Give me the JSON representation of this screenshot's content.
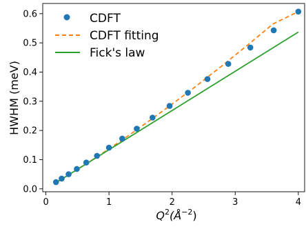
{
  "chart_data": {
    "type": "line",
    "xlabel": "Q²(Å⁻²)",
    "xlabel_parts": {
      "base": "Q",
      "exp": "2",
      "unit_open": "(Å",
      "unit_exp": "−2",
      "unit_close": ")"
    },
    "ylabel": "HWHM (meV)",
    "xlim": [
      -0.05,
      4.1
    ],
    "ylim": [
      -0.01,
      0.635
    ],
    "xticks": [
      0,
      1,
      2,
      3,
      4
    ],
    "yticks": [
      0.0,
      0.1,
      0.2,
      0.3,
      0.4,
      0.5,
      0.6
    ],
    "xtick_labels": [
      "0",
      "1",
      "2",
      "3",
      "4"
    ],
    "ytick_labels": [
      "0.0",
      "0.1",
      "0.2",
      "0.3",
      "0.4",
      "0.5",
      "0.6"
    ],
    "legend_position": "upper-left",
    "grid": false,
    "series": [
      {
        "name": "CDFT",
        "kind": "scatter",
        "color": "#1f77b4",
        "x": [
          0.16,
          0.25,
          0.36,
          0.49,
          0.64,
          0.81,
          1.0,
          1.21,
          1.44,
          1.69,
          1.96,
          2.25,
          2.56,
          2.89,
          3.24,
          3.61,
          4.0
        ],
        "y": [
          0.023,
          0.035,
          0.05,
          0.068,
          0.09,
          0.113,
          0.141,
          0.172,
          0.206,
          0.244,
          0.284,
          0.329,
          0.376,
          0.428,
          0.484,
          0.543,
          0.607
        ]
      },
      {
        "name": "CDFT fitting",
        "kind": "dashed",
        "color": "#ff7f0e",
        "x": [
          0.16,
          0.4,
          0.8,
          1.2,
          1.6,
          2.0,
          2.4,
          2.8,
          3.2,
          3.6,
          4.0
        ],
        "y": [
          0.021,
          0.053,
          0.108,
          0.166,
          0.227,
          0.29,
          0.355,
          0.423,
          0.493,
          0.565,
          0.607
        ]
      },
      {
        "name": "Fick's law",
        "kind": "line",
        "color": "#2ca02c",
        "x": [
          0.16,
          4.0
        ],
        "y": [
          0.021,
          0.537
        ]
      }
    ]
  }
}
